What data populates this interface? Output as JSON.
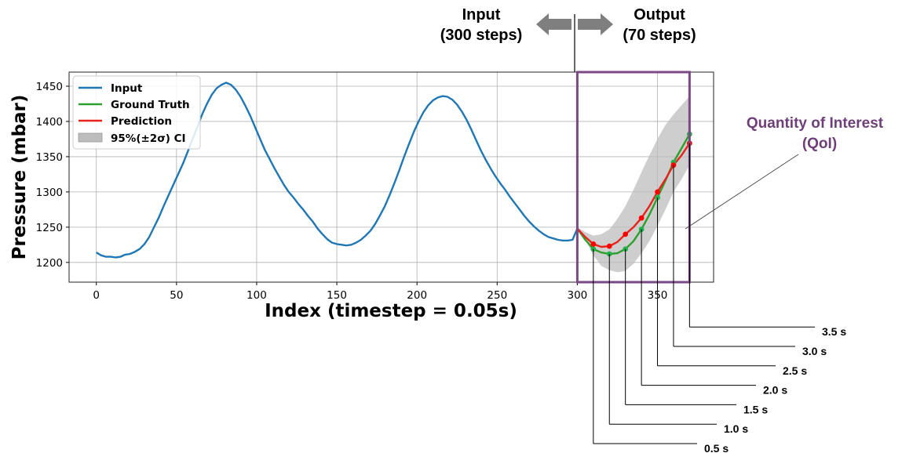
{
  "header": {
    "input_line1": "Input",
    "input_line2": "(300 steps)",
    "output_line1": "Output",
    "output_line2": "(70 steps)"
  },
  "qoi": {
    "line1": "Quantity of Interest",
    "line2": "(QoI)"
  },
  "colors": {
    "input": "#1f77b4",
    "ground_truth": "#2ca02c",
    "prediction": "#e8231c",
    "ci": "#bdbdbd",
    "qoi_box": "#7b4a84",
    "arrow": "#7f7f7f"
  },
  "chart_data": {
    "type": "line",
    "xlabel": "Index (timestep = 0.05s)",
    "ylabel": "Pressure (mbar)",
    "xlim": [
      -17,
      385
    ],
    "ylim": [
      1172,
      1470
    ],
    "xticks": [
      0,
      50,
      100,
      150,
      200,
      250,
      300,
      350
    ],
    "yticks": [
      1200,
      1250,
      1300,
      1350,
      1400,
      1450
    ],
    "grid": true,
    "legend_position": "top-left",
    "legend": [
      "Input",
      "Ground Truth",
      "Prediction",
      "95%(±2σ) CI"
    ],
    "series": [
      {
        "name": "Input",
        "x": [
          0,
          3,
          6,
          9,
          12,
          15,
          18,
          21,
          24,
          27,
          30,
          33,
          36,
          39,
          42,
          45,
          48,
          51,
          54,
          57,
          60,
          63,
          66,
          69,
          72,
          75,
          78,
          81,
          84,
          87,
          90,
          93,
          96,
          99,
          102,
          105,
          108,
          111,
          114,
          117,
          120,
          123,
          126,
          129,
          132,
          135,
          138,
          141,
          144,
          147,
          150,
          153,
          156,
          159,
          162,
          165,
          168,
          171,
          174,
          177,
          180,
          183,
          186,
          189,
          192,
          195,
          198,
          201,
          204,
          207,
          210,
          213,
          216,
          219,
          222,
          225,
          228,
          231,
          234,
          237,
          240,
          243,
          246,
          249,
          252,
          255,
          258,
          261,
          264,
          267,
          270,
          273,
          276,
          279,
          282,
          285,
          288,
          291,
          294,
          297,
          300
        ],
        "values": [
          1214,
          1210,
          1208,
          1208,
          1207,
          1208,
          1211,
          1212,
          1215,
          1219,
          1226,
          1236,
          1250,
          1264,
          1280,
          1295,
          1310,
          1325,
          1340,
          1357,
          1375,
          1392,
          1410,
          1425,
          1438,
          1447,
          1452,
          1455,
          1452,
          1445,
          1435,
          1422,
          1408,
          1392,
          1376,
          1360,
          1347,
          1334,
          1322,
          1310,
          1300,
          1292,
          1283,
          1275,
          1266,
          1258,
          1248,
          1240,
          1233,
          1228,
          1226,
          1225,
          1224,
          1225,
          1228,
          1232,
          1238,
          1245,
          1255,
          1267,
          1280,
          1296,
          1313,
          1331,
          1350,
          1368,
          1385,
          1400,
          1413,
          1423,
          1430,
          1434,
          1436,
          1435,
          1431,
          1424,
          1414,
          1402,
          1388,
          1373,
          1358,
          1345,
          1333,
          1322,
          1312,
          1303,
          1293,
          1284,
          1275,
          1266,
          1258,
          1251,
          1245,
          1240,
          1236,
          1234,
          1232,
          1231,
          1231,
          1232,
          1248
        ]
      },
      {
        "name": "Ground Truth",
        "x": [
          300,
          305,
          310,
          315,
          320,
          325,
          330,
          335,
          340,
          345,
          350,
          355,
          360,
          365,
          370
        ],
        "values": [
          1248,
          1232,
          1219,
          1214,
          1212,
          1213,
          1219,
          1230,
          1247,
          1268,
          1292,
          1316,
          1342,
          1362,
          1382
        ],
        "markers_x": [
          310,
          320,
          330,
          340,
          350,
          360,
          370
        ],
        "markers_y": [
          1219,
          1212,
          1219,
          1247,
          1292,
          1342,
          1382
        ]
      },
      {
        "name": "Prediction",
        "x": [
          300,
          305,
          310,
          315,
          320,
          325,
          330,
          335,
          340,
          345,
          350,
          355,
          360,
          365,
          370
        ],
        "values": [
          1248,
          1236,
          1226,
          1222,
          1223,
          1229,
          1240,
          1250,
          1263,
          1280,
          1300,
          1318,
          1338,
          1352,
          1369
        ],
        "markers_x": [
          310,
          320,
          330,
          340,
          350,
          360,
          370
        ],
        "markers_y": [
          1226,
          1223,
          1240,
          1263,
          1300,
          1338,
          1369
        ]
      },
      {
        "name": "95%(±2σ) CI",
        "x": [
          300,
          305,
          310,
          315,
          320,
          325,
          330,
          335,
          340,
          345,
          350,
          355,
          360,
          365,
          370
        ],
        "upper": [
          1250,
          1243,
          1238,
          1240,
          1247,
          1262,
          1280,
          1303,
          1328,
          1352,
          1375,
          1395,
          1410,
          1423,
          1436
        ],
        "lower": [
          1247,
          1232,
          1210,
          1195,
          1189,
          1186,
          1188,
          1198,
          1213,
          1230,
          1252,
          1275,
          1300,
          1318,
          1338
        ]
      }
    ],
    "qoi_range": {
      "x": [
        300,
        370
      ]
    },
    "time_labels": [
      {
        "index": 310,
        "label": "0.5 s"
      },
      {
        "index": 320,
        "label": "1.0 s"
      },
      {
        "index": 330,
        "label": "1.5 s"
      },
      {
        "index": 340,
        "label": "2.0 s"
      },
      {
        "index": 350,
        "label": "2.5 s"
      },
      {
        "index": 360,
        "label": "3.0 s"
      },
      {
        "index": 370,
        "label": "3.5 s"
      }
    ]
  }
}
